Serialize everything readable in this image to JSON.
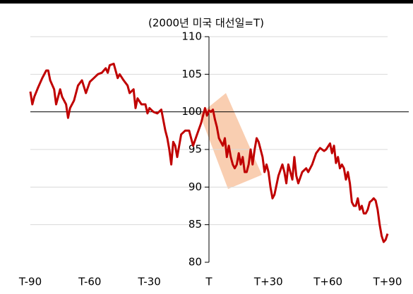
{
  "chart_data": {
    "type": "line",
    "title": "(2000년 미국 대선일=T)",
    "x": [
      -90,
      -89,
      -88,
      -86,
      -84,
      -82,
      -81,
      -80,
      -78,
      -77,
      -75,
      -74,
      -72,
      -71,
      -70,
      -68,
      -66,
      -64,
      -62,
      -60,
      -58,
      -56,
      -54,
      -52,
      -51,
      -50,
      -48,
      -46,
      -45,
      -43,
      -41,
      -40,
      -38,
      -37,
      -36,
      -34,
      -32,
      -31,
      -30,
      -28,
      -26,
      -24,
      -22,
      -21,
      -20,
      -19,
      -18,
      -17,
      -16,
      -14,
      -12,
      -10,
      -8,
      -6,
      -4,
      -2,
      -1,
      0,
      1,
      2,
      3,
      4,
      5,
      6,
      7,
      8,
      9,
      10,
      11,
      12,
      13,
      14,
      15,
      16,
      17,
      18,
      19,
      20,
      21,
      22,
      23,
      24,
      25,
      26,
      27,
      28,
      29,
      30,
      31,
      32,
      33,
      35,
      37,
      38,
      39,
      40,
      42,
      43,
      44,
      45,
      47,
      49,
      50,
      52,
      54,
      56,
      58,
      59,
      61,
      62,
      63,
      64,
      65,
      66,
      67,
      68,
      69,
      70,
      71,
      72,
      73,
      74,
      75,
      76,
      77,
      78,
      79,
      80,
      81,
      82,
      83,
      84,
      85,
      86,
      87,
      88,
      89,
      90
    ],
    "series": [
      {
        "name": "line",
        "color": "#c00000",
        "values": [
          102.7,
          101,
          102,
          103.3,
          104.5,
          105.5,
          105.5,
          104.2,
          103,
          101,
          103,
          102,
          101,
          99.2,
          100.5,
          101.5,
          103.5,
          104.2,
          102.5,
          104,
          104.5,
          105,
          105.2,
          105.8,
          105.2,
          106.2,
          106.4,
          104.5,
          105,
          104.2,
          103.5,
          102.5,
          103,
          100.5,
          101.8,
          101,
          101,
          99.8,
          100.5,
          100,
          99.8,
          100.3,
          97.5,
          96.5,
          95,
          93,
          96,
          95.5,
          94,
          97,
          97.5,
          97.5,
          95.5,
          97,
          98.5,
          100.5,
          99.5,
          100.2,
          100,
          100.3,
          99,
          98,
          96.5,
          96,
          95.5,
          96.5,
          94,
          95.5,
          94,
          93,
          92.5,
          93,
          94.5,
          93,
          94,
          92,
          92,
          93,
          95,
          93,
          95,
          96.5,
          96,
          95,
          94,
          92,
          93,
          92,
          90,
          88.5,
          89,
          91.5,
          93,
          92,
          90.5,
          93,
          91,
          94,
          91.5,
          90.5,
          92,
          92.5,
          92,
          93,
          94.5,
          95.2,
          94.8,
          95,
          95.8,
          94.5,
          95.5,
          93.2,
          94,
          92.5,
          93,
          92.5,
          91,
          92,
          90.5,
          88,
          87.5,
          87.5,
          88.5,
          87,
          87.5,
          86.5,
          86.5,
          87,
          88,
          88.2,
          88.5,
          88.2,
          87,
          85,
          83.5,
          82.7,
          83,
          83.8
        ]
      }
    ],
    "xlim": [
      -90,
      90
    ],
    "xticks": [
      {
        "value": -90,
        "label": "T-90"
      },
      {
        "value": -60,
        "label": "T-60"
      },
      {
        "value": -30,
        "label": "T-30"
      },
      {
        "value": 0,
        "label": "T"
      },
      {
        "value": 30,
        "label": "T+30"
      },
      {
        "value": 60,
        "label": "T+60"
      },
      {
        "value": 90,
        "label": "T+90"
      }
    ],
    "ylim": [
      80,
      110
    ],
    "yticks": [
      80,
      85,
      90,
      95,
      100,
      105,
      110
    ],
    "grid": true,
    "reference_line": 100,
    "yaxis_at_x": 0
  }
}
